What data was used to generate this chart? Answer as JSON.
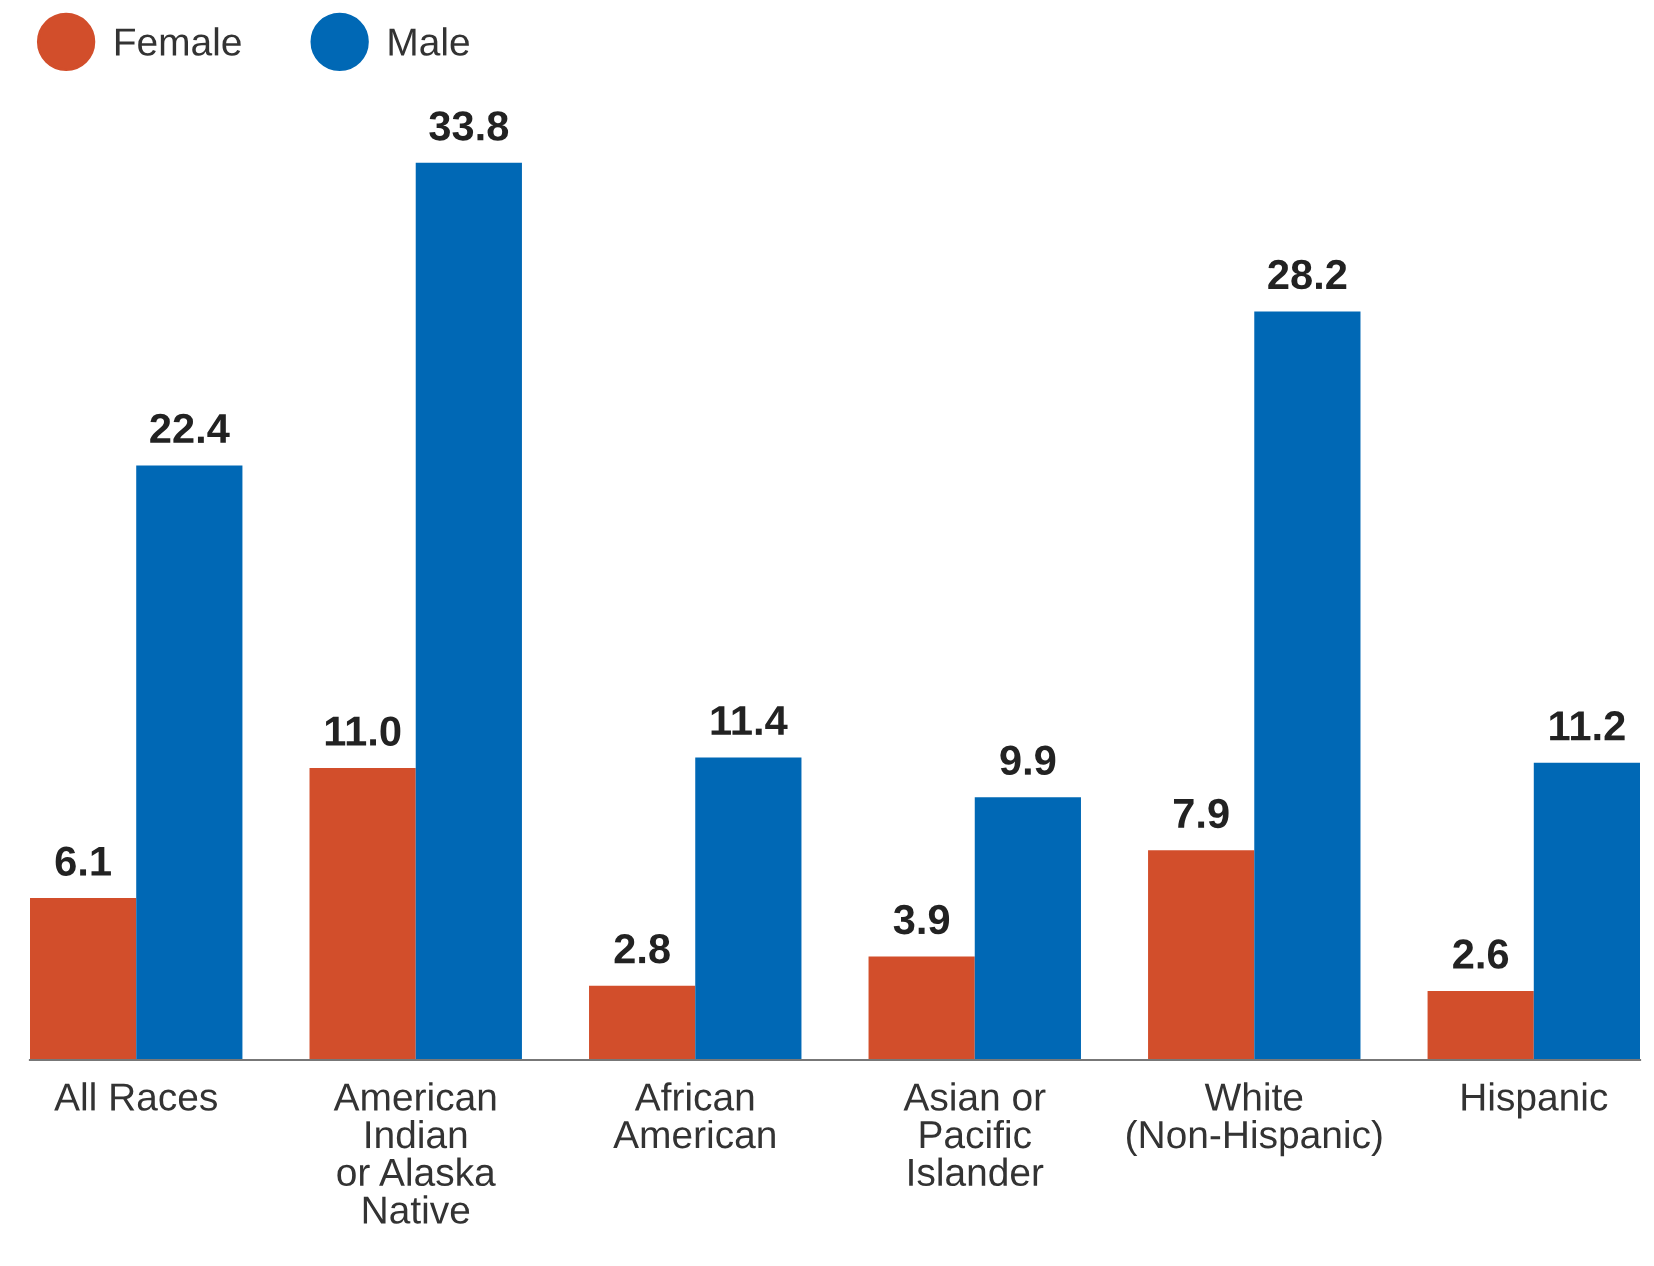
{
  "chart_data": {
    "type": "bar",
    "categories": [
      "All Races",
      "American\nIndian\nor Alaska\nNative",
      "African\nAmerican",
      "Asian or\nPacific\nIslander",
      "White\n(Non-Hispanic)",
      "Hispanic"
    ],
    "series": [
      {
        "name": "Female",
        "color": "#d24e2b",
        "values": [
          6.1,
          11.0,
          2.8,
          3.9,
          7.9,
          2.6
        ],
        "value_labels": [
          "6.1",
          "11.0",
          "2.8",
          "3.9",
          "7.9",
          "2.6"
        ]
      },
      {
        "name": "Male",
        "color": "#0068b5",
        "values": [
          22.4,
          33.8,
          11.4,
          9.9,
          28.2,
          11.2
        ],
        "value_labels": [
          "22.4",
          "33.8",
          "11.4",
          "9.9",
          "28.2",
          "11.2"
        ]
      }
    ],
    "legend": "top left",
    "grid": false
  }
}
